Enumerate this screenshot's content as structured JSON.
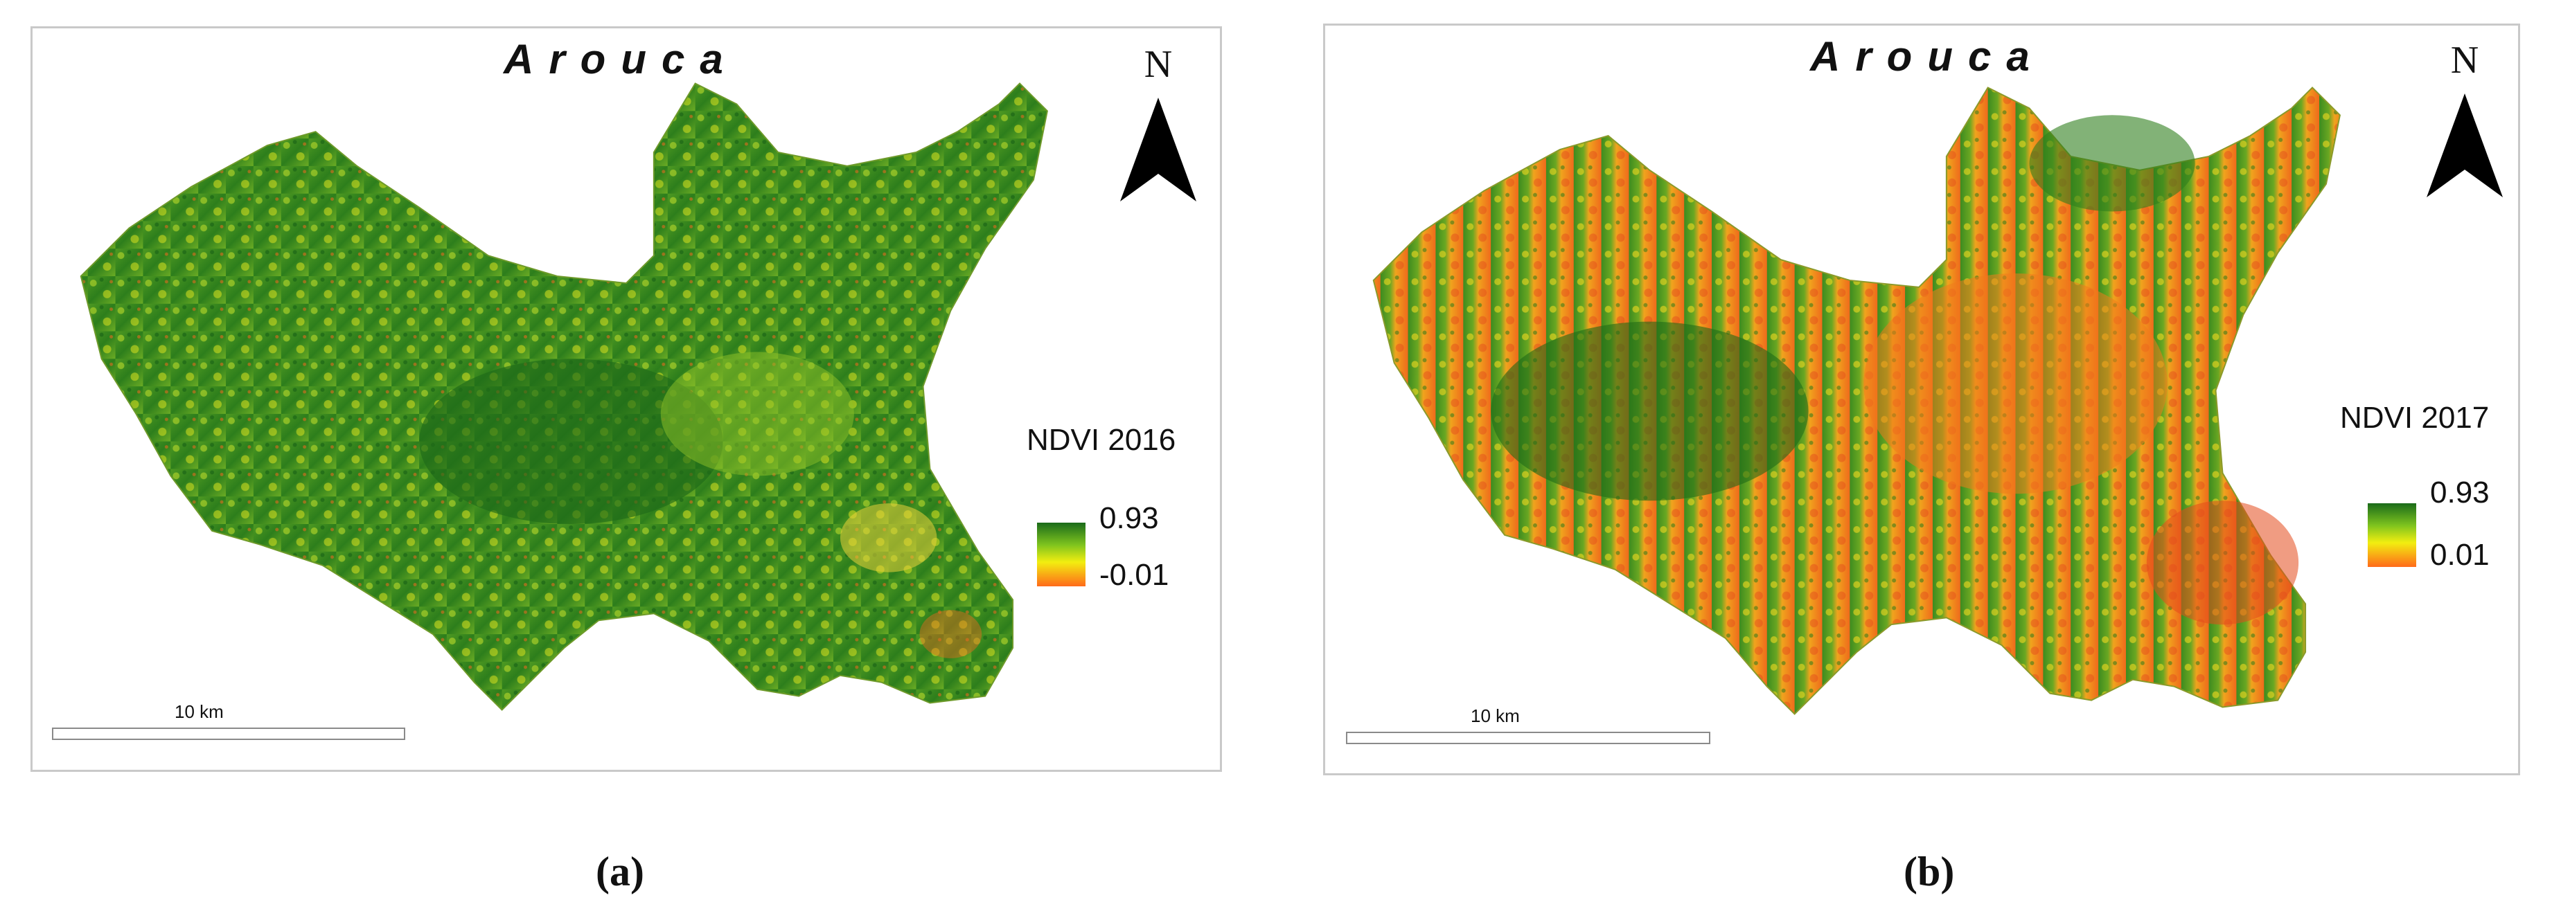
{
  "panels": [
    {
      "title": "Arouca",
      "north_label": "N",
      "legend": {
        "title": "NDVI 2016",
        "max": "0.93",
        "min": "-0.01"
      },
      "scale_label": "10 km",
      "caption": "(a)",
      "dominant_color": "#2f8a1f",
      "stress_color": "#e8451f"
    },
    {
      "title": "Arouca",
      "north_label": "N",
      "legend": {
        "title": "NDVI 2017",
        "max": "0.93",
        "min": "0.01"
      },
      "scale_label": "10 km",
      "caption": "(b)",
      "dominant_color": "#f08a1a",
      "stress_color": "#e8451f"
    }
  ],
  "colors": {
    "high_ndvi": "#1a6b1a",
    "mid_ndvi": "#f2ee10",
    "low_ndvi": "#ff6a1a"
  }
}
